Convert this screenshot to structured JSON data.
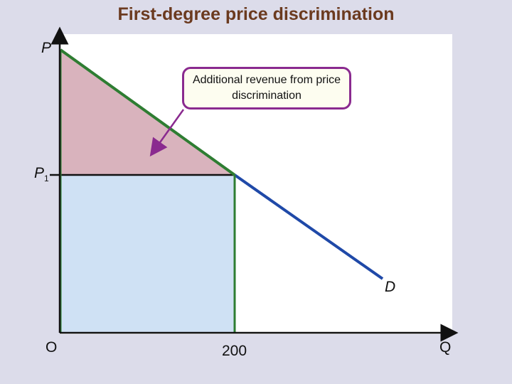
{
  "title": "First-degree price discrimination",
  "axes": {
    "y_label": "P",
    "x_label": "Q",
    "origin_label": "O",
    "price_label": "P",
    "price_subscript": "1",
    "quantity_label": "200"
  },
  "curve_label": "D",
  "callout": {
    "text": "Additional revenue from price discrimination"
  },
  "colors": {
    "demand_upper": "#2e7d32",
    "demand_lower": "#1f49a8",
    "surplus_fill": "#d9b3bd",
    "revenue_fill": "#cfe1f4",
    "callout_border": "#8a2a8f",
    "title": "#6b3a1f"
  }
}
